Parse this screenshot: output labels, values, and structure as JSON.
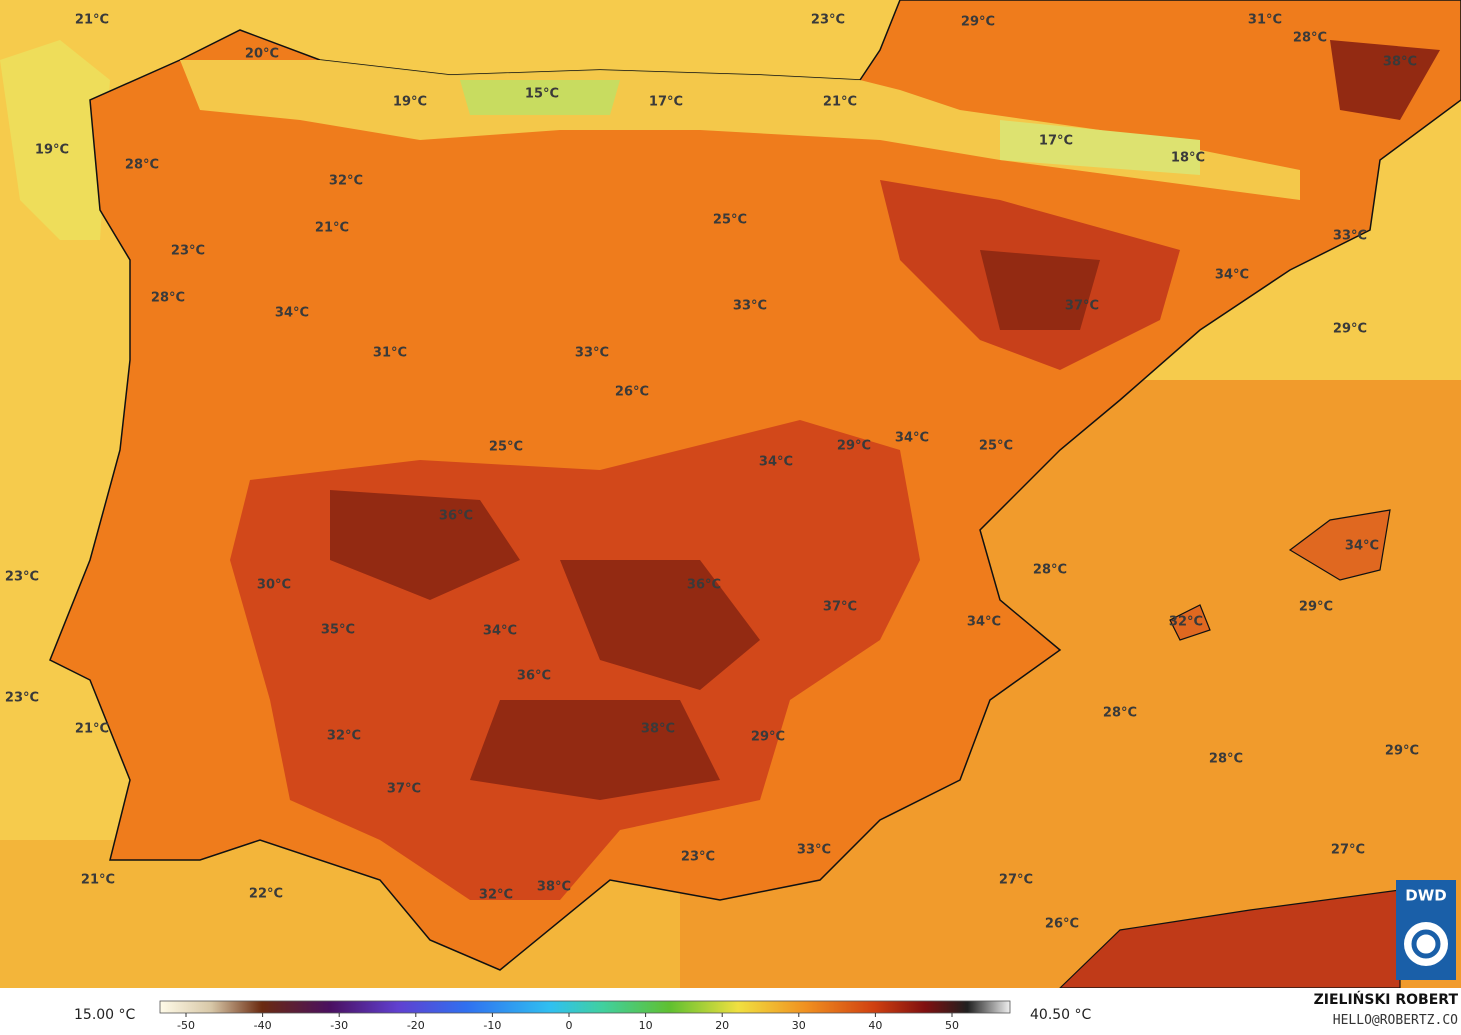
{
  "map": {
    "labels": [
      "21°C",
      "23°C",
      "29°C",
      "31°C",
      "28°C",
      "38°C",
      "20°C",
      "19°C",
      "15°C",
      "17°C",
      "21°C",
      "19°C",
      "17°C",
      "18°C",
      "28°C",
      "32°C",
      "21°C",
      "25°C",
      "23°C",
      "33°C",
      "34°C",
      "28°C",
      "34°C",
      "33°C",
      "37°C",
      "29°C",
      "31°C",
      "33°C",
      "26°C",
      "25°C",
      "29°C",
      "34°C",
      "25°C",
      "34°C",
      "36°C",
      "34°C",
      "28°C",
      "23°C",
      "30°C",
      "36°C",
      "37°C",
      "29°C",
      "34°C",
      "32°C",
      "35°C",
      "34°C",
      "36°C",
      "23°C",
      "28°C",
      "21°C",
      "38°C",
      "32°C",
      "29°C",
      "28°C",
      "29°C",
      "37°C",
      "33°C",
      "27°C",
      "23°C",
      "21°C",
      "27°C",
      "22°C",
      "32°C",
      "38°C",
      "26°C"
    ],
    "colorbar": {
      "min_label": "15.00 °C",
      "max_label": "40.50 °C",
      "ticks": [
        -50,
        -40,
        -30,
        -20,
        -10,
        0,
        10,
        20,
        30,
        40,
        50
      ]
    },
    "credit": {
      "author": "ZIELIŃSKI ROBERT",
      "contact": "HELLO@ROBERTZ.CO",
      "logo": "DWD"
    }
  }
}
